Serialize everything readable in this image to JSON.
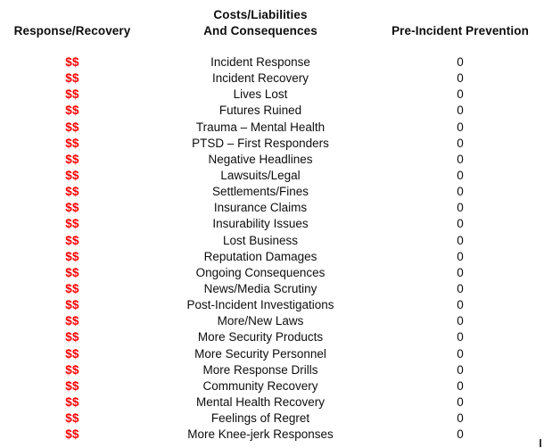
{
  "table": {
    "header": {
      "col1": "Response/Recovery",
      "col2_line1": "Costs/Liabilities",
      "col2_line2": "And Consequences",
      "col3": "Pre-Incident Prevention"
    },
    "rows": [
      {
        "response_recovery": "$$",
        "item": "Incident Response",
        "pre_incident_prevention": "0"
      },
      {
        "response_recovery": "$$",
        "item": "Incident Recovery",
        "pre_incident_prevention": "0"
      },
      {
        "response_recovery": "$$",
        "item": "Lives Lost",
        "pre_incident_prevention": "0"
      },
      {
        "response_recovery": "$$",
        "item": "Futures Ruined",
        "pre_incident_prevention": "0"
      },
      {
        "response_recovery": "$$",
        "item": "Trauma – Mental Health",
        "pre_incident_prevention": "0"
      },
      {
        "response_recovery": "$$",
        "item": "PTSD – First Responders",
        "pre_incident_prevention": "0"
      },
      {
        "response_recovery": "$$",
        "item": "Negative Headlines",
        "pre_incident_prevention": "0"
      },
      {
        "response_recovery": "$$",
        "item": "Lawsuits/Legal",
        "pre_incident_prevention": "0"
      },
      {
        "response_recovery": "$$",
        "item": "Settlements/Fines",
        "pre_incident_prevention": "0"
      },
      {
        "response_recovery": "$$",
        "item": "Insurance Claims",
        "pre_incident_prevention": "0"
      },
      {
        "response_recovery": "$$",
        "item": "Insurability Issues",
        "pre_incident_prevention": "0"
      },
      {
        "response_recovery": "$$",
        "item": "Lost Business",
        "pre_incident_prevention": "0"
      },
      {
        "response_recovery": "$$",
        "item": "Reputation Damages",
        "pre_incident_prevention": "0"
      },
      {
        "response_recovery": "$$",
        "item": "Ongoing Consequences",
        "pre_incident_prevention": "0"
      },
      {
        "response_recovery": "$$",
        "item": "News/Media Scrutiny",
        "pre_incident_prevention": "0"
      },
      {
        "response_recovery": "$$",
        "item": "Post-Incident Investigations",
        "pre_incident_prevention": "0"
      },
      {
        "response_recovery": "$$",
        "item": "More/New Laws",
        "pre_incident_prevention": "0"
      },
      {
        "response_recovery": "$$",
        "item": "More Security Products",
        "pre_incident_prevention": "0"
      },
      {
        "response_recovery": "$$",
        "item": "More Security Personnel",
        "pre_incident_prevention": "0"
      },
      {
        "response_recovery": "$$",
        "item": "More Response Drills",
        "pre_incident_prevention": "0"
      },
      {
        "response_recovery": "$$",
        "item": "Community Recovery",
        "pre_incident_prevention": "0"
      },
      {
        "response_recovery": "$$",
        "item": "Mental Health Recovery",
        "pre_incident_prevention": "0"
      },
      {
        "response_recovery": "$$",
        "item": "Feelings of Regret",
        "pre_incident_prevention": "0"
      },
      {
        "response_recovery": "$$",
        "item": "More Knee-jerk Responses",
        "pre_incident_prevention": "0"
      }
    ]
  },
  "colors": {
    "dollar_red": "#fe0000",
    "text_black": "#0d0d0d",
    "background": "#ffffff"
  }
}
